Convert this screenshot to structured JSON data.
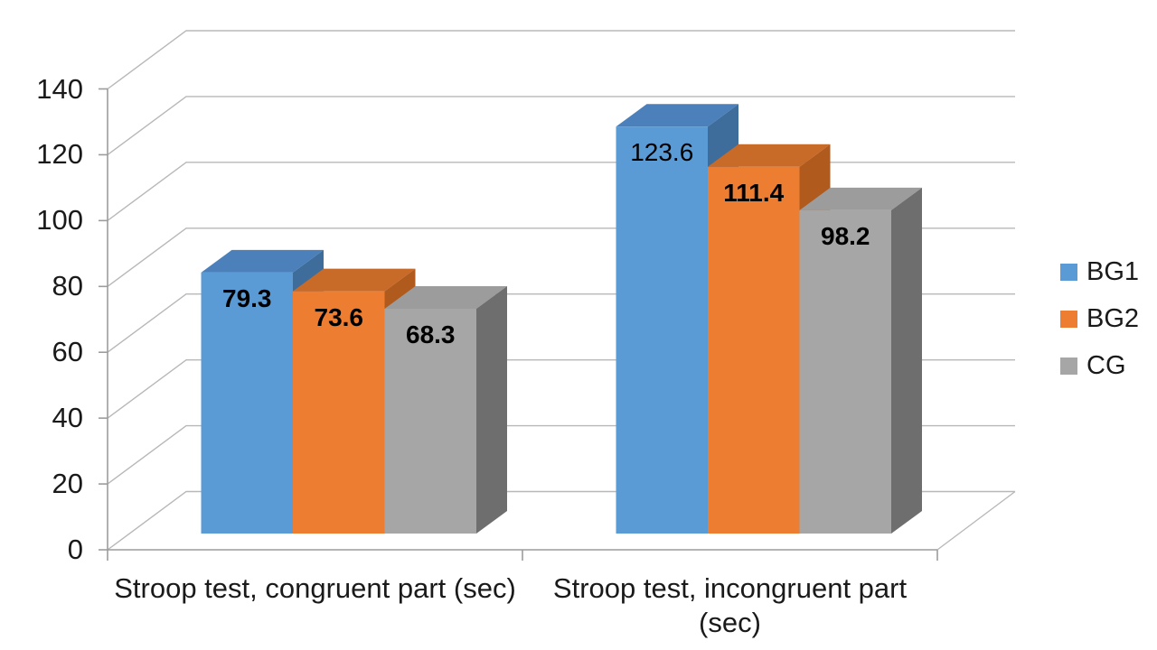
{
  "chart_data": {
    "type": "bar",
    "variant": "3d-clustered-column",
    "title": "",
    "categories": [
      "Stroop test, congruent part (sec)",
      "Stroop test, incongruent part (sec)"
    ],
    "category_label_lines": [
      [
        "Stroop test, congruent part (sec)"
      ],
      [
        "Stroop test, incongruent part",
        "(sec)"
      ]
    ],
    "series": [
      {
        "name": "BG1",
        "values": [
          79.3,
          123.6
        ],
        "color": "#5B9BD5",
        "color_top": "#4B80BA",
        "color_side": "#3E6D9C"
      },
      {
        "name": "BG2",
        "values": [
          73.6,
          111.4
        ],
        "color": "#ED7D31",
        "color_top": "#C86A28",
        "color_side": "#B05A1E"
      },
      {
        "name": "CG",
        "values": [
          68.3,
          98.2
        ],
        "color": "#A6A6A6",
        "color_top": "#9C9C9C",
        "color_side": "#6E6E6E"
      }
    ],
    "data_labels": [
      [
        "79.3",
        "73.6",
        "68.3"
      ],
      [
        "123.6",
        "111.4",
        "98.2"
      ]
    ],
    "data_label_bold": [
      [
        true,
        true,
        true
      ],
      [
        false,
        true,
        true
      ]
    ],
    "y_axis": {
      "min": 0,
      "max": 140,
      "step": 20,
      "tick_labels": [
        "0",
        "20",
        "40",
        "60",
        "80",
        "100",
        "120",
        "140"
      ]
    },
    "x_axis": {
      "label": ""
    },
    "legend": {
      "position": "right",
      "entries": [
        "BG1",
        "BG2",
        "CG"
      ]
    },
    "grid": true,
    "colors": {
      "gridline": "#B8B8B8",
      "axis": "#9C9C9C",
      "label_text": "#000000",
      "background": "#FFFFFF"
    }
  }
}
